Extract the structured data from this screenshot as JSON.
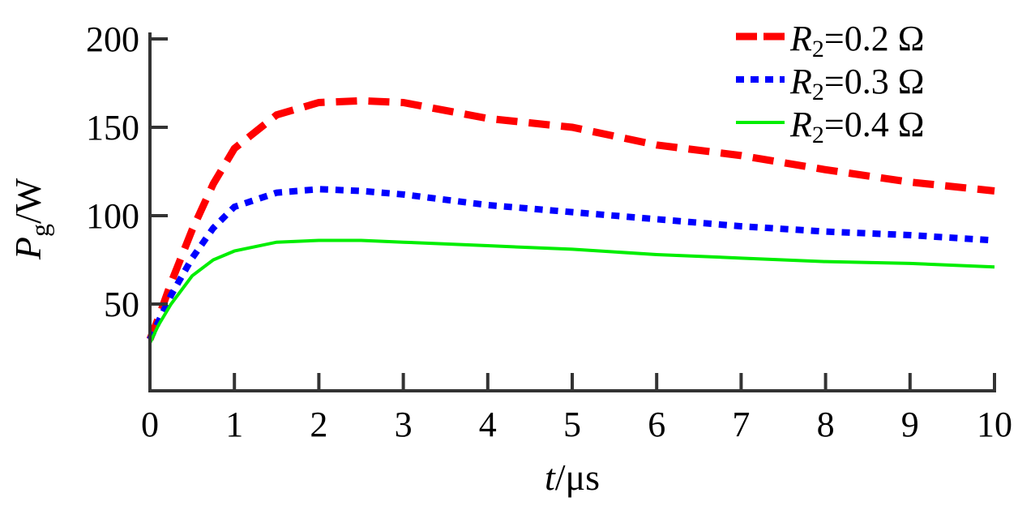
{
  "chart_data": {
    "type": "line",
    "xlabel_italic": "t",
    "xlabel_unit": "/μs",
    "ylabel_main": "P",
    "ylabel_sub": "g",
    "ylabel_unit": "/W",
    "xlim": [
      0,
      10
    ],
    "ylim": [
      0,
      200
    ],
    "xticks": [
      0,
      1,
      2,
      3,
      4,
      5,
      6,
      7,
      8,
      9,
      10
    ],
    "yticks": [
      50,
      100,
      150,
      200
    ],
    "legend_position": "top-right",
    "x": [
      0,
      0.1,
      0.25,
      0.5,
      0.75,
      1,
      1.5,
      2,
      2.5,
      3,
      4,
      5,
      6,
      7,
      8,
      9,
      10
    ],
    "series": [
      {
        "name_var": "R",
        "name_sub": "2",
        "name_val": "=0.2 Ω",
        "color": "#ff0000",
        "style": "dash",
        "values": [
          30,
          42,
          62,
          92,
          118,
          138,
          157,
          164,
          165,
          164,
          155,
          150,
          140,
          134,
          126,
          119,
          114
        ]
      },
      {
        "name_var": "R",
        "name_sub": "2",
        "name_val": "=0.3 Ω",
        "color": "#0000ff",
        "style": "dot",
        "values": [
          30,
          40,
          55,
          76,
          93,
          105,
          113,
          115,
          114,
          112,
          106,
          102,
          98,
          94,
          91,
          89,
          86
        ]
      },
      {
        "name_var": "R",
        "name_sub": "2",
        "name_val": "=0.4 Ω",
        "color": "#00ee00",
        "style": "solid",
        "values": [
          28,
          38,
          50,
          66,
          75,
          80,
          85,
          86,
          86,
          85,
          83,
          81,
          78,
          76,
          74,
          73,
          71
        ]
      }
    ]
  }
}
